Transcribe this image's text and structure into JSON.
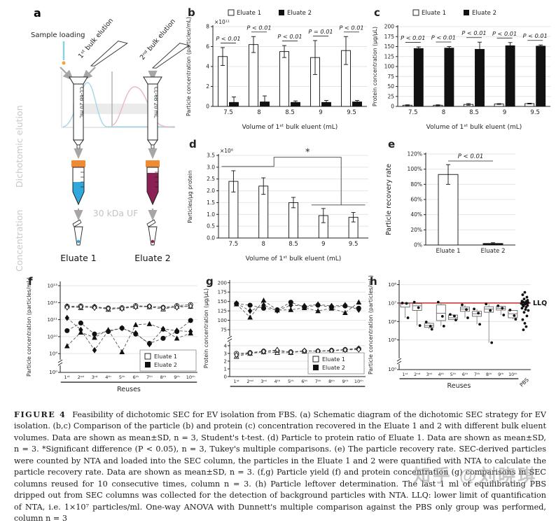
{
  "watermark": {
    "text": "知乎 @刘晓琪"
  },
  "caption": {
    "tag": "FIGURE 4",
    "text": "Feasibility of dichotomic SEC for EV isolation from FBS. (a) Schematic diagram of the dichotomic SEC strategy for EV isolation. (b,c) Comparison of the particle (b) and protein (c) concentration recovered in the Eluate 1 and 2 with different bulk eluent volumes. Data are shown as mean±SD, n = 3, Student's t-test. (d) Particle to protein ratio of Eluate 1. Data are shown as mean±SD, n = 3. *Significant difference (P < 0.05), n = 3, Tukey's multiple comparisons. (e) The particle recovery rate. SEC-derived particles were counted by NTA and loaded into the SEC column, the particles in the Eluate 1 and 2 were quantified with NTA to calculate the particle recovery rate. Data are shown as mean±SD, n = 3. (f,g) Particle yield (f) and protein concentration (g) comparisons in SEC columns reused for 10 consecutive times, column n = 3. (h) Particle leftover determination. The last 1 ml of equilibrating PBS dripped out from SEC columns was collected for the detection of background particles with NTA. LLQ: lower limit of quantification of NTA, i.e. 1×10⁷ particles/ml. One-way ANOVA with Dunnett's multiple comparison against the PBS only group was performed, column n = 3"
  },
  "panel_a": {
    "letter": "a",
    "sample_loading": "Sample loading",
    "bulk1": "1ˢᵗ bulk elution",
    "bulk2": "2ⁿᵈ bulk elution",
    "column1_label": "CL-6B 20 mL",
    "column2_label": "CL-6B 20 mL",
    "dichotomic": "Dichotomic elution",
    "concentration": "Concentration",
    "uf": "30 kDa UF",
    "eluate1": "Eluate 1",
    "eluate2": "Eluate 2",
    "colors": {
      "eluate1_liquid": "#31a8dc",
      "eluate2_liquid": "#8c2155",
      "cap": "#ef8b33",
      "arrow": "#a6a6a6"
    }
  },
  "chart_data": [
    {
      "id": "b",
      "panel": "b",
      "type": "bar",
      "ylabel": "Particle concentration (particles/mL)",
      "scale_note": "×10¹¹",
      "xlabel": "Volume of 1ˢᵗ bulk eluent (mL)",
      "categories": [
        "7.5",
        "8",
        "8.5",
        "9",
        "9.5"
      ],
      "ylim": [
        0,
        8
      ],
      "yticks": [
        0,
        2,
        4,
        6,
        8
      ],
      "ytick_labels": [
        "0",
        "2",
        "4",
        "6",
        "8"
      ],
      "legend": {
        "labels": [
          "Eluate 1",
          "Eluate 2"
        ],
        "position": "top"
      },
      "series": [
        {
          "name": "Eluate 1",
          "fill": "#ffffff",
          "values": [
            5.0,
            6.2,
            5.5,
            4.9,
            5.6
          ],
          "errors": [
            0.9,
            0.8,
            0.6,
            1.7,
            1.4
          ]
        },
        {
          "name": "Eluate 2",
          "fill": "#111111",
          "values": [
            0.4,
            0.45,
            0.4,
            0.4,
            0.45
          ],
          "errors": [
            0.55,
            0.6,
            0.15,
            0.2,
            0.15
          ]
        }
      ],
      "p_labels": [
        "P < 0.01",
        "P < 0.01",
        "P < 0.01",
        "P = 0.01",
        "P < 0.01"
      ]
    },
    {
      "id": "c",
      "panel": "c",
      "type": "bar",
      "ylabel": "Protein concentration (μg/μL)",
      "xlabel": "Volume of 1ˢᵗ bulk eluent (mL)",
      "categories": [
        "7.5",
        "8",
        "8.5",
        "9",
        "9.5"
      ],
      "ylim": [
        0,
        200
      ],
      "yticks": [
        0,
        25,
        50,
        75,
        100,
        125,
        150,
        175,
        200
      ],
      "ytick_labels": [
        "0",
        "25",
        "50",
        "75",
        "100",
        "125",
        "150",
        "175",
        "200"
      ],
      "legend": {
        "labels": [
          "Eluate 1",
          "Eluate 2"
        ],
        "position": "top"
      },
      "series": [
        {
          "name": "Eluate 1",
          "fill": "#ffffff",
          "values": [
            3,
            3,
            5,
            6,
            7
          ],
          "errors": [
            1,
            1,
            2,
            1,
            1
          ]
        },
        {
          "name": "Eluate 2",
          "fill": "#111111",
          "values": [
            145,
            146,
            143,
            152,
            151
          ],
          "errors": [
            4,
            4,
            18,
            8,
            3
          ]
        }
      ],
      "p_labels": [
        "P < 0.01",
        "P < 0.01",
        "P < 0.01",
        "P < 0.01",
        "P < 0.01"
      ]
    },
    {
      "id": "d",
      "panel": "d",
      "type": "bar",
      "ylabel": "Particles/μg protein",
      "scale_note": "×10⁸",
      "xlabel": "Volume of 1ˢᵗ bulk eluent (mL)",
      "categories": [
        "7.5",
        "8",
        "8.5",
        "9",
        "9.5"
      ],
      "ylim": [
        0,
        3.5
      ],
      "yticks": [
        0,
        0.5,
        1,
        1.5,
        2,
        2.5,
        3,
        3.5
      ],
      "ytick_labels": [
        "0.0",
        "0.5",
        "1.0",
        "1.5",
        "2.0",
        "2.5",
        "3.0",
        "3.5"
      ],
      "series": [
        {
          "name": "Eluate 1",
          "fill": "#ffffff",
          "values": [
            2.4,
            2.2,
            1.5,
            0.95,
            0.88
          ],
          "errors": [
            0.45,
            0.35,
            0.22,
            0.3,
            0.2
          ]
        }
      ],
      "bracket": {
        "y1": 3.03,
        "y2": 1.4,
        "yTop": 3.42,
        "label": "*"
      }
    },
    {
      "id": "e",
      "panel": "e",
      "type": "bar",
      "ylabel": "Particle recovery rate",
      "categories": [
        "Eluate 1",
        "Eluate 2"
      ],
      "ylim": [
        0,
        120
      ],
      "yticks": [
        0,
        20,
        40,
        60,
        80,
        100,
        120
      ],
      "ytick_labels": [
        "0%",
        "20%",
        "40%",
        "60%",
        "80%",
        "100%",
        "120%"
      ],
      "series": [
        {
          "name": "recovery",
          "fills": [
            "#ffffff",
            "#111111"
          ],
          "values": [
            93,
            2
          ],
          "errors": [
            13,
            1
          ]
        }
      ],
      "p_center": "P < 0.01"
    },
    {
      "id": "f",
      "panel": "f",
      "type": "line-log",
      "ylabel": "Particle concentration (particles/mL)",
      "xlabel": "Reuses",
      "x_labels": [
        "1ˢᵗ",
        "2ⁿᵈ",
        "3ʳᵈ",
        "4ᵗʰ",
        "5ᵗʰ",
        "6ᵗʰ",
        "7ᵗʰ",
        "8ᵗʰ",
        "9ᵗʰ",
        "10ᵗʰ"
      ],
      "yrange": [
        8.8,
        13.25
      ],
      "yticks": [
        {
          "v": 13,
          "label": "10¹³"
        },
        {
          "v": 12,
          "label": "10¹²"
        },
        {
          "v": 11,
          "label": "10¹¹"
        },
        {
          "v": 10,
          "label": "10¹⁰"
        },
        {
          "v": 9,
          "label": "10⁹"
        }
      ],
      "bottom_tick": "10⁰",
      "legend": {
        "labels": [
          "Eluate 1",
          "Eluate 2"
        ]
      },
      "series": [
        {
          "name": "Eluate 1 col1",
          "marker": "circle",
          "open": true,
          "values": [
            11.78,
            11.8,
            11.75,
            11.68,
            11.7,
            11.82,
            11.78,
            11.72,
            11.82,
            11.88
          ]
        },
        {
          "name": "Eluate 1 col2",
          "marker": "triangle",
          "open": true,
          "values": [
            11.8,
            11.7,
            11.78,
            11.6,
            11.68,
            11.78,
            11.75,
            11.62,
            11.78,
            11.78
          ]
        },
        {
          "name": "Eluate 1 col3",
          "marker": "diamond",
          "open": true,
          "values": [
            11.72,
            11.75,
            11.7,
            11.65,
            11.65,
            11.75,
            11.78,
            11.7,
            11.72,
            11.8
          ]
        },
        {
          "name": "Eluate 2 col1",
          "marker": "circle",
          "open": false,
          "values": [
            10.35,
            10.8,
            10.15,
            10.3,
            10.5,
            10.15,
            9.6,
            9.9,
            10.3,
            10.95
          ]
        },
        {
          "name": "Eluate 2 col2",
          "marker": "triangle",
          "open": false,
          "values": [
            9.45,
            10.25,
            9.95,
            10.4,
            9.1,
            10.7,
            10.75,
            10.45,
            9.9,
            10.2
          ]
        },
        {
          "name": "Eluate 2 col3",
          "marker": "diamond",
          "open": false,
          "values": [
            11.1,
            10.4,
            9.2,
            10.35,
            10.5,
            10.2,
            9.55,
            10.45,
            10.35,
            10.3
          ]
        }
      ]
    },
    {
      "id": "g",
      "panel": "g",
      "type": "line-break",
      "ylabel": "Protein concentration (μg/μL)",
      "x_labels": [
        "1ˢᵗ",
        "2ⁿᵈ",
        "3ʳᵈ",
        "4ᵗʰ",
        "5ᵗʰ",
        "6ᵗʰ",
        "7ᵗʰ",
        "8ᵗʰ",
        "9ᵗʰ",
        "10ᵗʰ"
      ],
      "top_ticks": [
        200,
        175,
        150,
        125,
        100,
        75
      ],
      "top_range": [
        62,
        207
      ],
      "bottom_ticks": [
        4,
        3,
        2,
        1,
        0
      ],
      "bottom_range": [
        0,
        4.35
      ],
      "legend": {
        "labels": [
          "Eluate 1",
          "Eluate 2"
        ]
      },
      "series": [
        {
          "name": "Eluate 2 col1",
          "area": "top",
          "marker": "circle",
          "open": false,
          "values": [
            144,
            140,
            132,
            128,
            148,
            135,
            140,
            135,
            138,
            132
          ]
        },
        {
          "name": "Eluate 2 col2",
          "area": "top",
          "marker": "triangle",
          "open": false,
          "values": [
            143,
            108,
            153,
            127,
            128,
            133,
            125,
            132,
            120,
            148
          ]
        },
        {
          "name": "Eluate 2 col3",
          "area": "top",
          "marker": "diamond",
          "open": false,
          "values": [
            145,
            125,
            140,
            126,
            140,
            138,
            142,
            138,
            140,
            128
          ]
        },
        {
          "name": "Eluate 1 col1",
          "area": "bottom",
          "marker": "circle",
          "open": true,
          "values": [
            3.0,
            3.1,
            3.3,
            3.3,
            3.2,
            3.3,
            3.3,
            3.4,
            3.5,
            3.6
          ]
        },
        {
          "name": "Eluate 1 col2",
          "area": "bottom",
          "marker": "triangle",
          "open": true,
          "values": [
            2.6,
            3.0,
            3.2,
            3.1,
            3.1,
            3.3,
            3.3,
            3.3,
            3.5,
            3.7
          ]
        },
        {
          "name": "Eluate 1 col3",
          "area": "bottom",
          "marker": "diamond",
          "open": true,
          "values": [
            2.8,
            3.05,
            3.25,
            3.45,
            3.15,
            3.35,
            3.3,
            3.35,
            3.45,
            3.5
          ]
        }
      ]
    },
    {
      "id": "h",
      "panel": "h",
      "type": "box-log",
      "ylabel": "Particle concentration (particles/mL)",
      "xlabel": "Reuses",
      "x_labels": [
        "1ˢᵗ",
        "2ⁿᵈ",
        "3ʳᵈ",
        "4ᵗʰ",
        "5ᵗʰ",
        "6ᵗʰ",
        "7ᵗʰ",
        "8ᵗʰ",
        "9ᵗʰ",
        "10ᵗʰ",
        "PBS"
      ],
      "yrange": [
        4.15,
        8.25
      ],
      "yticks": [
        {
          "v": 8,
          "label": "10⁸"
        },
        {
          "v": 7,
          "label": "10⁷"
        },
        {
          "v": 6,
          "label": "10⁶"
        },
        {
          "v": 5,
          "label": "10⁵"
        }
      ],
      "bottom_tick": "10⁰",
      "llq": {
        "value": 7,
        "label": "LLQ",
        "color": "#cc2a2a"
      },
      "boxes": [
        {
          "q1": 6.78,
          "med": 6.97,
          "q3": 7.0,
          "points": [
            7.0,
            6.98,
            6.2
          ]
        },
        {
          "q1": 6.6,
          "med": 6.85,
          "q3": 6.97,
          "points": [
            7.05,
            6.75,
            5.78
          ]
        },
        {
          "q1": 5.68,
          "med": 5.78,
          "q3": 5.9,
          "points": [
            5.97,
            5.75,
            5.58
          ]
        },
        {
          "q1": 6.05,
          "med": 6.45,
          "q3": 6.9,
          "points": [
            7.05,
            6.28,
            5.75
          ]
        },
        {
          "q1": 6.1,
          "med": 6.2,
          "q3": 6.35,
          "points": [
            6.38,
            6.3,
            6.08
          ]
        },
        {
          "q1": 6.55,
          "med": 6.68,
          "q3": 6.78,
          "points": [
            6.9,
            6.65,
            6.2
          ]
        },
        {
          "q1": 6.28,
          "med": 6.42,
          "q3": 6.55,
          "points": [
            6.68,
            6.45,
            5.85
          ]
        },
        {
          "q1": 6.5,
          "med": 6.68,
          "q3": 6.8,
          "points": [
            6.95,
            6.6,
            4.85
          ]
        },
        {
          "q1": 6.62,
          "med": 6.72,
          "q3": 6.82,
          "points": [
            6.85,
            6.72,
            6.35
          ]
        },
        {
          "q1": 6.2,
          "med": 6.42,
          "q3": 6.6,
          "points": [
            6.62,
            6.32,
            6.12
          ]
        }
      ],
      "pbs": {
        "label": "PBS",
        "points": [
          7.58,
          7.45,
          7.32,
          7.22,
          7.15,
          7.1,
          7.08,
          7.05,
          7.02,
          7.0,
          6.98,
          6.96,
          6.93,
          6.9,
          6.87,
          6.83,
          6.78,
          6.72,
          6.65,
          6.6,
          6.5,
          6.3,
          6.1,
          5.9,
          5.72,
          5.55
        ]
      }
    }
  ]
}
